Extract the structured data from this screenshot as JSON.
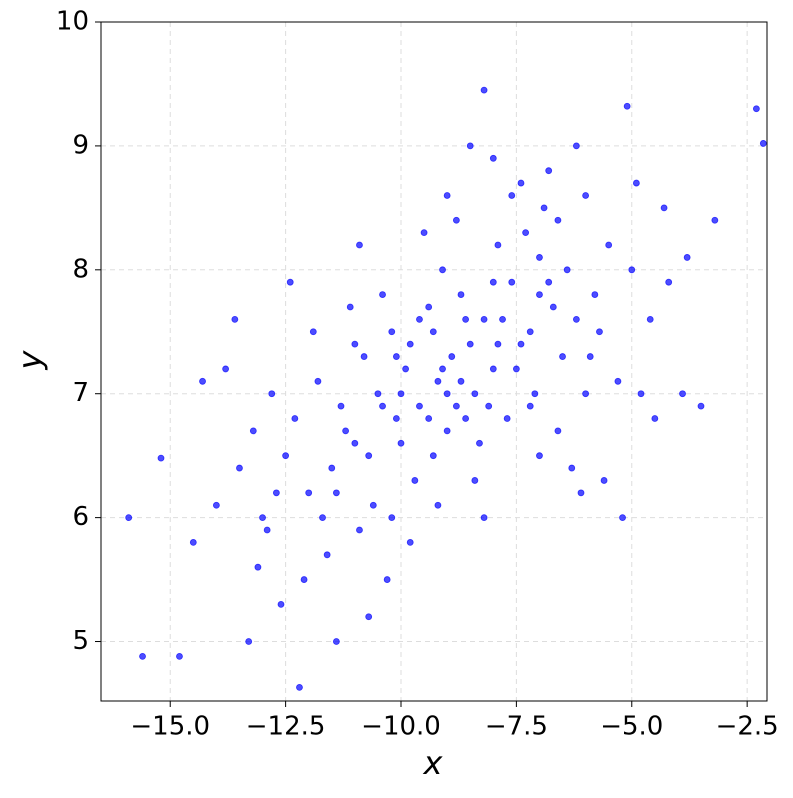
{
  "chart_data": {
    "type": "scatter",
    "x_label": "x",
    "y_label": "y",
    "x": [
      -9.2,
      -8.5,
      -10.1,
      -7.8,
      -9.6,
      -8.9,
      -11.0,
      -7.2,
      -9.9,
      -8.1,
      -10.5,
      -6.8,
      -9.3,
      -8.7,
      -11.5,
      -7.5,
      -10.2,
      -8.3,
      -9.0,
      -6.5,
      -12.0,
      -7.0,
      -9.7,
      -8.0,
      -10.8,
      -6.2,
      -11.3,
      -7.7,
      -9.4,
      -8.6,
      -12.5,
      -5.8,
      -10.6,
      -7.3,
      -11.8,
      -6.0,
      -9.1,
      -8.4,
      -10.0,
      -7.1,
      -13.0,
      -5.5,
      -10.9,
      -6.9,
      -12.3,
      -5.9,
      -9.5,
      -8.2,
      -10.4,
      -6.6,
      -13.5,
      -5.0,
      -11.6,
      -7.4,
      -12.8,
      -5.3,
      -9.8,
      -8.8,
      -11.1,
      -6.3,
      -14.0,
      -4.6,
      -12.1,
      -8.0,
      -13.2,
      -4.8,
      -10.3,
      -7.6,
      -11.9,
      -6.1,
      -14.5,
      -4.2,
      -12.6,
      -6.8,
      -13.8,
      -4.5,
      -10.7,
      -9.0,
      -12.4,
      -5.6,
      -15.2,
      -3.8,
      -13.3,
      -6.2,
      -14.3,
      -3.9,
      -11.4,
      -8.5,
      -13.6,
      -5.2,
      -15.9,
      -3.2,
      -15.6,
      -8.2,
      -14.8,
      -5.1,
      -12.2,
      -2.3,
      -2.15,
      -3.5,
      -9.3,
      -8.0,
      -9.6,
      -8.4,
      -10.1,
      -7.9,
      -9.0,
      -8.7,
      -10.4,
      -7.6,
      -9.8,
      -8.2,
      -10.0,
      -8.8,
      -9.4,
      -7.4,
      -11.2,
      -6.7,
      -9.1,
      -8.6,
      -10.7,
      -7.0,
      -11.7,
      -6.4,
      -12.7,
      -5.7,
      -11.0,
      -7.2,
      -13.1,
      -4.3,
      -10.2,
      -7.9,
      -9.2,
      -6.6,
      -12.9,
      -4.9,
      -11.4,
      -7.0,
      -10.9,
      -6.0
    ],
    "y": [
      7.1,
      7.4,
      6.8,
      7.6,
      6.9,
      7.3,
      6.6,
      7.5,
      7.2,
      6.9,
      7.0,
      7.9,
      6.5,
      7.8,
      6.4,
      7.2,
      7.5,
      6.6,
      7.0,
      7.3,
      6.2,
      8.1,
      6.3,
      7.9,
      7.3,
      7.6,
      6.9,
      6.8,
      7.7,
      6.8,
      6.5,
      7.8,
      6.1,
      8.3,
      7.1,
      7.0,
      8.0,
      6.3,
      6.6,
      7.0,
      6.0,
      8.2,
      5.9,
      8.5,
      6.8,
      7.3,
      8.3,
      6.0,
      7.8,
      6.7,
      6.4,
      8.0,
      5.7,
      8.7,
      7.0,
      7.1,
      5.8,
      8.4,
      7.7,
      6.4,
      6.1,
      7.6,
      5.5,
      8.9,
      6.7,
      7.0,
      5.5,
      8.6,
      7.5,
      6.2,
      5.8,
      7.9,
      5.3,
      8.8,
      7.2,
      6.8,
      5.2,
      8.6,
      7.9,
      6.3,
      6.48,
      8.1,
      5.0,
      9.0,
      7.1,
      7.0,
      5.0,
      9.0,
      7.6,
      6.0,
      6.0,
      8.4,
      4.88,
      9.45,
      4.88,
      9.32,
      4.63,
      9.3,
      9.02,
      6.9,
      7.5,
      7.2,
      7.6,
      7.0,
      7.3,
      7.4,
      6.7,
      7.1,
      6.9,
      7.9,
      7.4,
      7.6,
      7.0,
      6.9,
      6.8,
      7.4,
      6.7,
      7.7,
      7.2,
      7.6,
      6.5,
      7.8,
      6.0,
      8.0,
      6.2,
      7.5,
      7.4,
      6.9,
      5.6,
      8.5,
      6.0,
      8.2,
      6.1,
      8.4,
      5.9,
      8.7,
      6.2,
      6.5,
      8.2,
      8.6
    ],
    "color": "#0000ff",
    "opacity": 0.7,
    "grid": true,
    "xlim": [
      -16.5,
      -2.07
    ],
    "ylim": [
      4.52,
      10
    ],
    "xticks": [
      {
        "value": -15,
        "label": "−15.0"
      },
      {
        "value": -12.5,
        "label": "−12.5"
      },
      {
        "value": -10,
        "label": "−10.0"
      },
      {
        "value": -7.5,
        "label": "−7.5"
      },
      {
        "value": -5,
        "label": "−5.0"
      },
      {
        "value": -2.5,
        "label": "−2.5"
      }
    ],
    "yticks": [
      5,
      6,
      7,
      8,
      9,
      10
    ]
  }
}
